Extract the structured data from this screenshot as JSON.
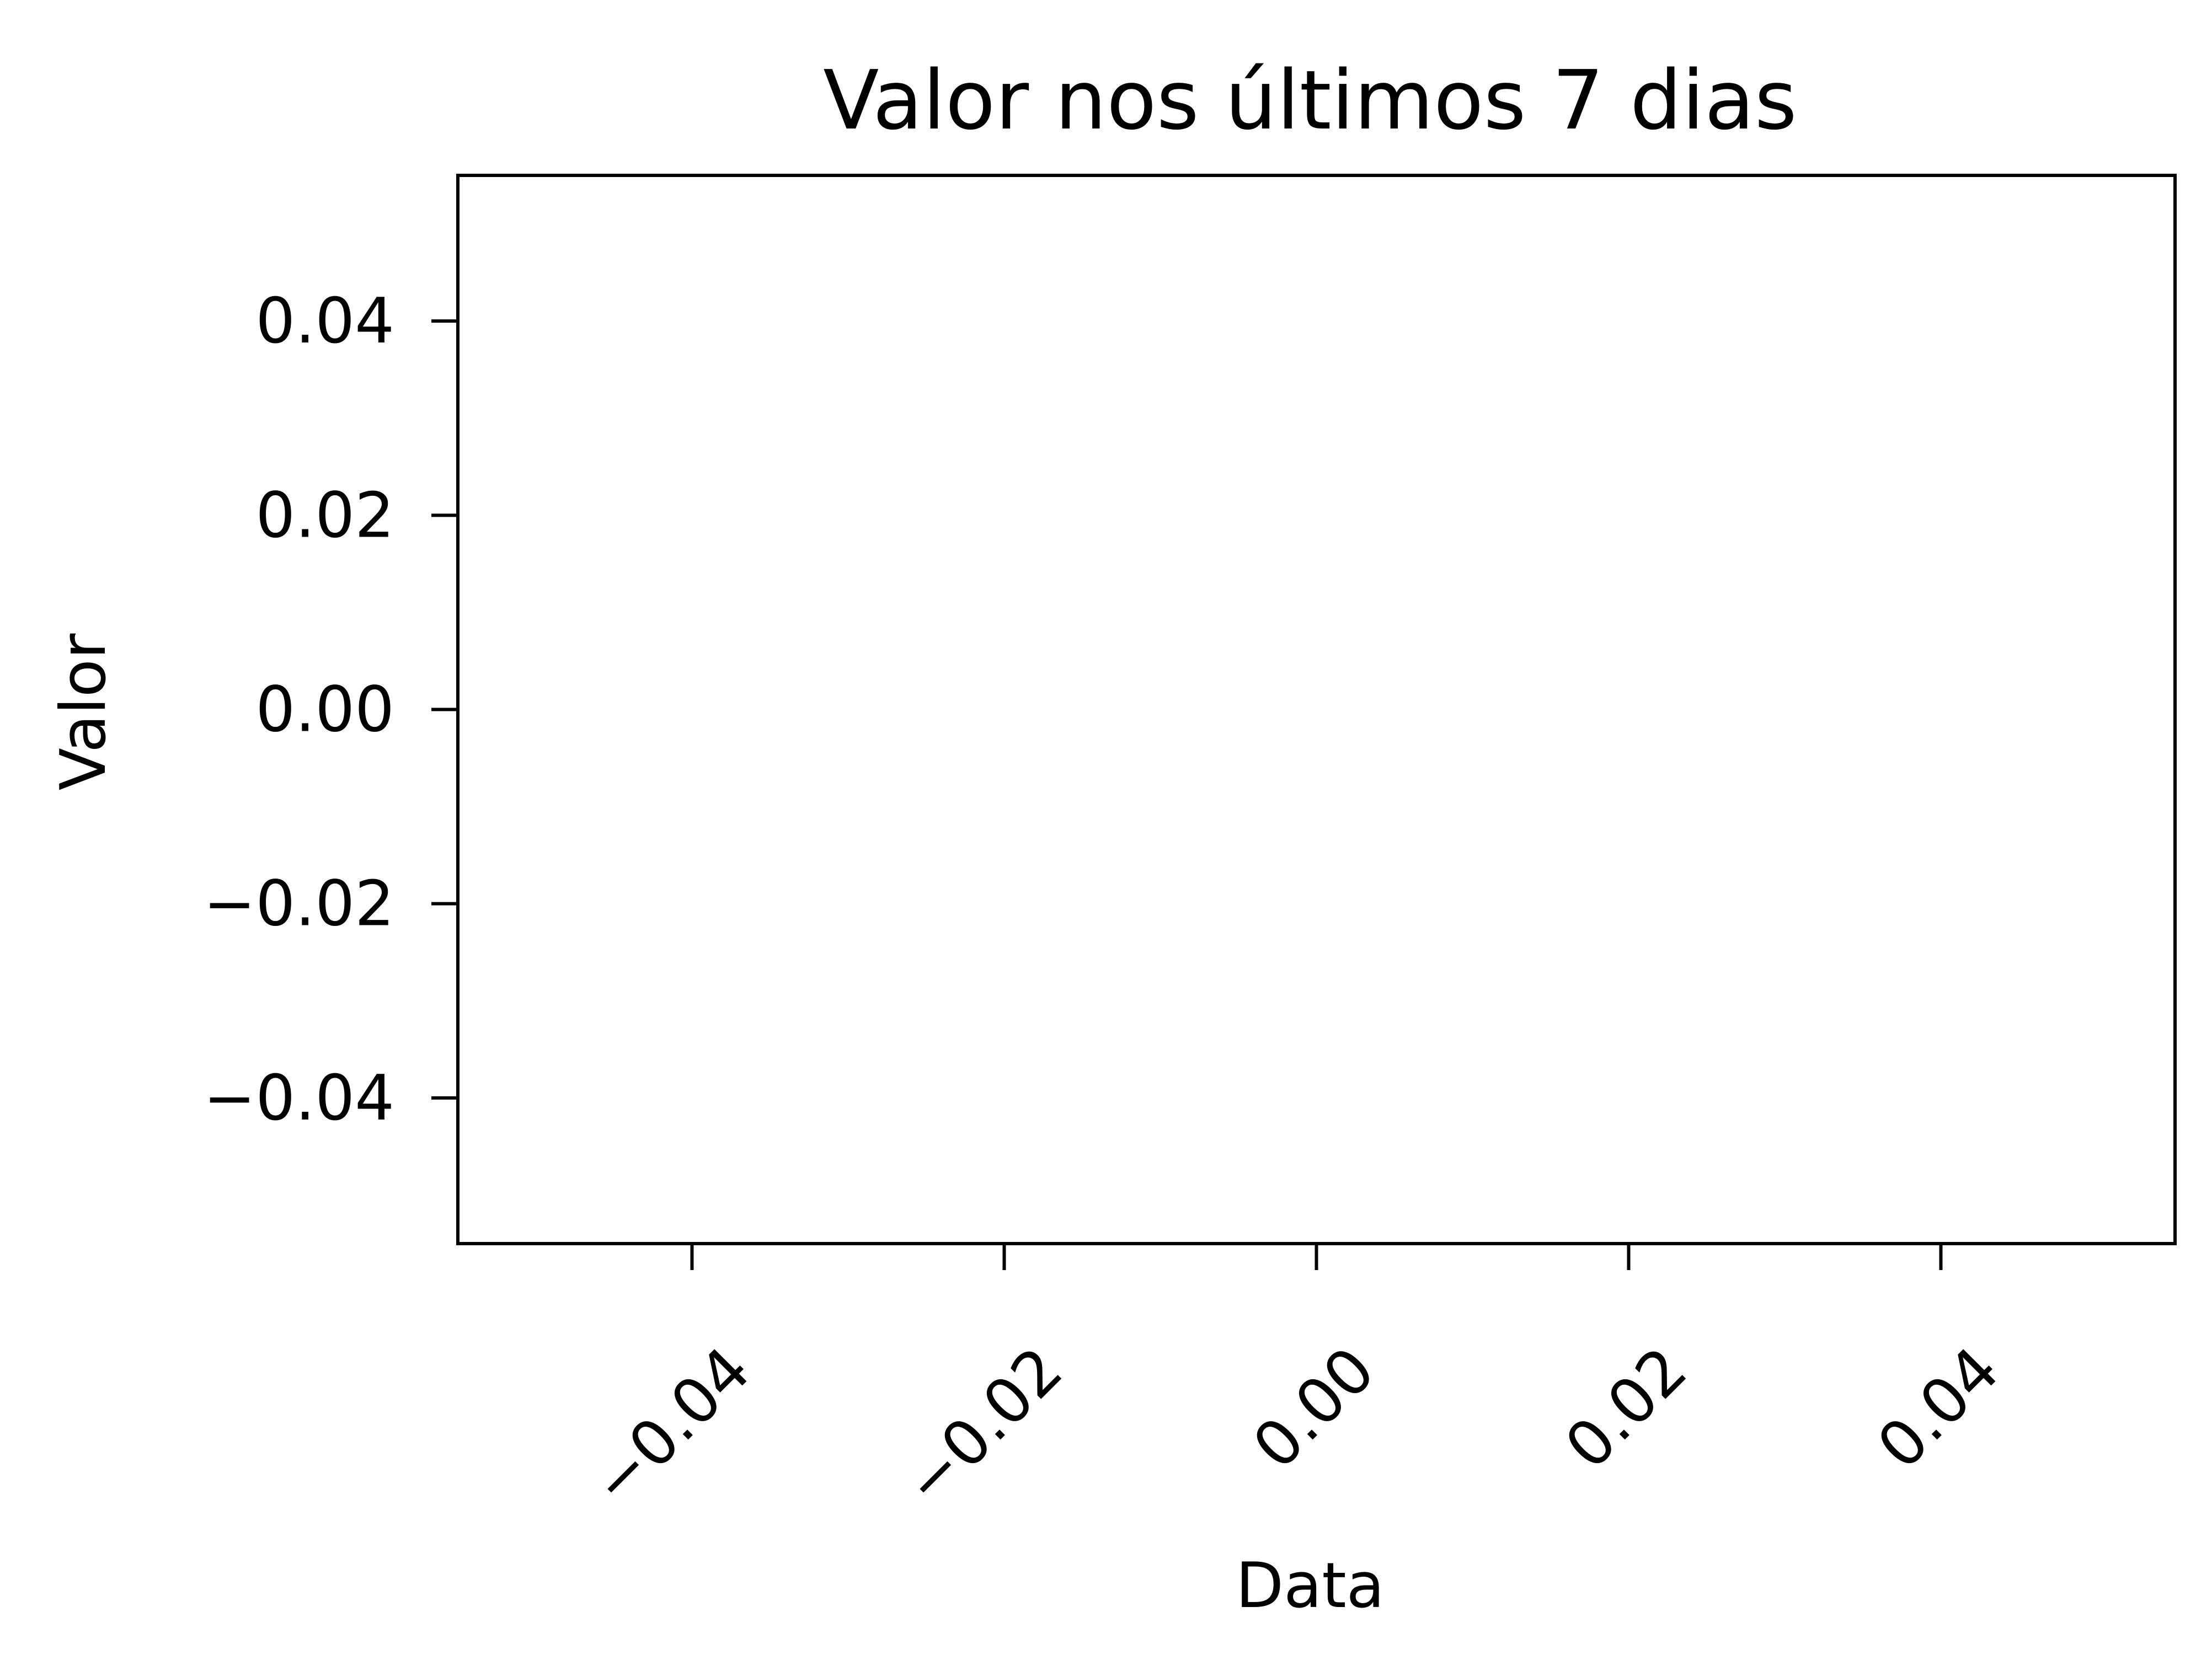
{
  "chart_data": {
    "type": "line",
    "title": "Valor nos últimos 7 dias",
    "xlabel": "Data",
    "ylabel": "Valor",
    "series": [
      {
        "x": [],
        "y": []
      }
    ],
    "xlim": [
      -0.055,
      0.055
    ],
    "ylim": [
      -0.055,
      0.055
    ],
    "x_ticks": [
      -0.04,
      -0.02,
      0.0,
      0.02,
      0.04
    ],
    "y_ticks": [
      -0.04,
      -0.02,
      0.0,
      0.02,
      0.04
    ],
    "x_tick_labels": [
      "−0.04",
      "−0.02",
      "0.00",
      "0.02",
      "0.04"
    ],
    "y_tick_labels": [
      "−0.04",
      "−0.02",
      "0.00",
      "0.02",
      "0.04"
    ],
    "x_tick_rotation_deg": -45,
    "grid": false,
    "legend": "none"
  }
}
